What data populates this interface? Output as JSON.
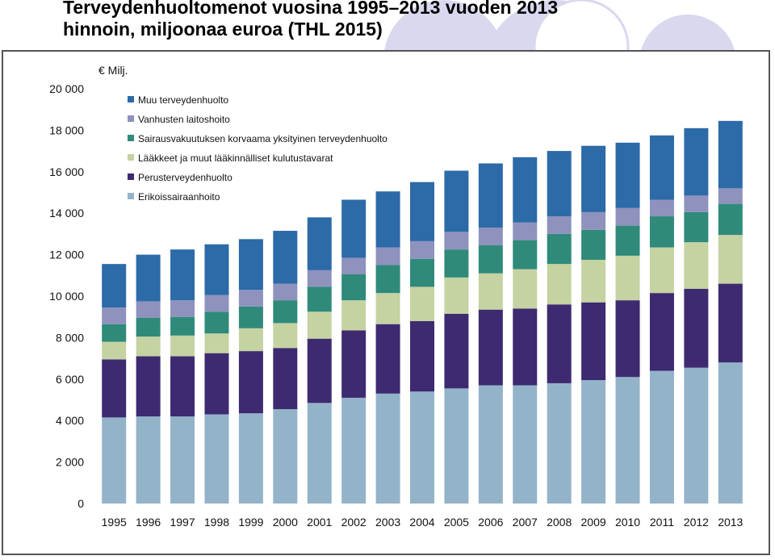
{
  "page": {
    "title": "Terveydenhuoltomenot vuosina 1995–2013 vuoden 2013 hinnoin, miljoonaa euroa (THL 2015)"
  },
  "chart_data": {
    "type": "bar",
    "stacked": true,
    "title": "",
    "unit_label": "€ Milj.",
    "xlabel": "",
    "ylabel": "",
    "ylim": [
      0,
      20000
    ],
    "yticks": [
      0,
      2000,
      4000,
      6000,
      8000,
      10000,
      12000,
      14000,
      16000,
      18000,
      20000
    ],
    "ytick_labels": [
      "0",
      "2 000",
      "4 000",
      "6 000",
      "8 000",
      "10 000",
      "12 000",
      "14 000",
      "16 000",
      "18 000",
      "20 000"
    ],
    "grid": false,
    "legend_position": "top-left",
    "categories": [
      "1995",
      "1996",
      "1997",
      "1998",
      "1999",
      "2000",
      "2001",
      "2002",
      "2003",
      "2004",
      "2005",
      "2006",
      "2007",
      "2008",
      "2009",
      "2010",
      "2011",
      "2012",
      "2013"
    ],
    "series": [
      {
        "name": "Erikoissairaanhoito",
        "color": "#93b3c9",
        "values": [
          4150,
          4200,
          4200,
          4300,
          4350,
          4550,
          4850,
          5100,
          5300,
          5400,
          5550,
          5700,
          5700,
          5800,
          5950,
          6100,
          6400,
          6550,
          6800
        ]
      },
      {
        "name": "Perusterveydenhuolto",
        "color": "#3e2a70",
        "values": [
          2800,
          2900,
          2900,
          2950,
          3000,
          2950,
          3100,
          3250,
          3350,
          3400,
          3600,
          3650,
          3700,
          3800,
          3750,
          3700,
          3750,
          3800,
          3800
        ]
      },
      {
        "name": "Lääkkeet ja muut lääkinnälliset kulutustavarat",
        "color": "#c5d2a2",
        "values": [
          850,
          950,
          1000,
          950,
          1100,
          1200,
          1300,
          1450,
          1500,
          1650,
          1750,
          1750,
          1900,
          1950,
          2050,
          2150,
          2200,
          2250,
          2350
        ]
      },
      {
        "name": "Sairausvakuutuksen korvaama yksityinen terveydenhuolto",
        "color": "#2f8a7a",
        "values": [
          850,
          900,
          900,
          1050,
          1050,
          1100,
          1200,
          1250,
          1350,
          1350,
          1350,
          1350,
          1400,
          1450,
          1450,
          1450,
          1500,
          1450,
          1500
        ]
      },
      {
        "name": "Vanhusten laitoshoito",
        "color": "#8e92bd",
        "values": [
          800,
          800,
          800,
          800,
          800,
          800,
          800,
          800,
          850,
          850,
          850,
          850,
          850,
          850,
          850,
          850,
          800,
          800,
          750
        ]
      },
      {
        "name": "Muu terveydenhuolto",
        "color": "#2c6aa8",
        "values": [
          2100,
          2250,
          2450,
          2450,
          2450,
          2550,
          2550,
          2800,
          2700,
          2850,
          2950,
          3100,
          3150,
          3150,
          3200,
          3150,
          3100,
          3250,
          3250
        ]
      }
    ]
  }
}
